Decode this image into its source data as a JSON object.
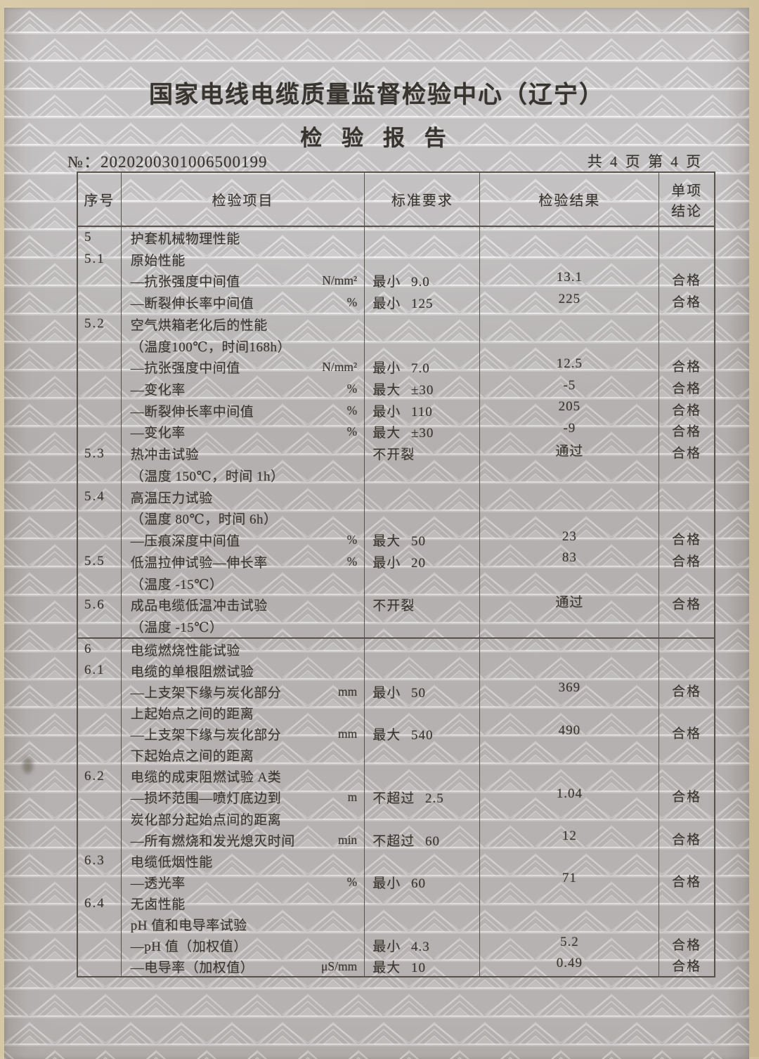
{
  "header": {
    "org": "国家电线电缆质量监督检验中心（辽宁）",
    "title": "检 验 报 告",
    "no_label": "№：",
    "no_value": "2020200301006500199",
    "page_info": "共 4 页 第 4 页"
  },
  "colors": {
    "paper": "#c2bfc0",
    "pattern_line": "#dcdadb",
    "ink": "#38342f",
    "table_line": "#58534d",
    "photo_edge": "#d3c4a0"
  },
  "table": {
    "columns": {
      "no": "序号",
      "item": "检验项目",
      "req": "标准要求",
      "result": "检验结果",
      "concl_line1": "单项",
      "concl_line2": "结论"
    },
    "sections": [
      {
        "rows": [
          {
            "no": "5",
            "item": "护套机械物理性能",
            "unit": "",
            "req": "",
            "result": "",
            "concl": ""
          },
          {
            "no": "5.1",
            "item": "原始性能",
            "unit": "",
            "req": "",
            "result": "",
            "concl": ""
          },
          {
            "no": "",
            "item": "—抗张强度中间值",
            "unit": "N/mm²",
            "req": "最小 9.0",
            "result": "13.1",
            "concl": "合格"
          },
          {
            "no": "",
            "item": "—断裂伸长率中间值",
            "unit": "%",
            "req": "最小 125",
            "result": "225",
            "concl": "合格"
          },
          {
            "no": "5.2",
            "item": "空气烘箱老化后的性能",
            "unit": "",
            "req": "",
            "result": "",
            "concl": ""
          },
          {
            "no": "",
            "item": "（温度100℃，时间168h）",
            "unit": "",
            "req": "",
            "result": "",
            "concl": ""
          },
          {
            "no": "",
            "item": "—抗张强度中间值",
            "unit": "N/mm²",
            "req": "最小 7.0",
            "result": "12.5",
            "concl": "合格"
          },
          {
            "no": "",
            "item": "—变化率",
            "unit": "%",
            "req": "最大 ±30",
            "result": "-5",
            "concl": "合格"
          },
          {
            "no": "",
            "item": "—断裂伸长率中间值",
            "unit": "%",
            "req": "最小 110",
            "result": "205",
            "concl": "合格"
          },
          {
            "no": "",
            "item": "—变化率",
            "unit": "%",
            "req": "最大 ±30",
            "result": "-9",
            "concl": "合格"
          },
          {
            "no": "5.3",
            "item": "热冲击试验",
            "unit": "",
            "req": "不开裂",
            "result": "通过",
            "concl": "合格"
          },
          {
            "no": "",
            "item": "（温度 150℃，时间 1h）",
            "unit": "",
            "req": "",
            "result": "",
            "concl": ""
          },
          {
            "no": "5.4",
            "item": "高温压力试验",
            "unit": "",
            "req": "",
            "result": "",
            "concl": ""
          },
          {
            "no": "",
            "item": "（温度 80℃，时间 6h）",
            "unit": "",
            "req": "",
            "result": "",
            "concl": ""
          },
          {
            "no": "",
            "item": "—压痕深度中间值",
            "unit": "%",
            "req": "最大 50",
            "result": "23",
            "concl": "合格"
          },
          {
            "no": "5.5",
            "item": "低温拉伸试验—伸长率",
            "unit": "%",
            "req": "最小 20",
            "result": "83",
            "concl": "合格"
          },
          {
            "no": "",
            "item": "（温度 -15℃）",
            "unit": "",
            "req": "",
            "result": "",
            "concl": ""
          },
          {
            "no": "5.6",
            "item": "成品电缆低温冲击试验",
            "unit": "",
            "req": "不开裂",
            "result": "通过",
            "concl": "合格"
          },
          {
            "no": "",
            "item": "（温度 -15℃）",
            "unit": "",
            "req": "",
            "result": "",
            "concl": ""
          }
        ]
      },
      {
        "rows": [
          {
            "no": "6",
            "item": "电缆燃烧性能试验",
            "unit": "",
            "req": "",
            "result": "",
            "concl": ""
          },
          {
            "no": "6.1",
            "item": "电缆的单根阻燃试验",
            "unit": "",
            "req": "",
            "result": "",
            "concl": ""
          },
          {
            "no": "",
            "item": "—上支架下缘与炭化部分",
            "unit": "mm",
            "req": "最小 50",
            "result": "369",
            "concl": "合格"
          },
          {
            "no": "",
            "item": "上起始点之间的距离",
            "unit": "",
            "req": "",
            "result": "",
            "concl": ""
          },
          {
            "no": "",
            "item": "—上支架下缘与炭化部分",
            "unit": "mm",
            "req": "最大 540",
            "result": "490",
            "concl": "合格"
          },
          {
            "no": "",
            "item": "下起始点之间的距离",
            "unit": "",
            "req": "",
            "result": "",
            "concl": ""
          },
          {
            "no": "6.2",
            "item": "电缆的成束阻燃试验 A类",
            "unit": "",
            "req": "",
            "result": "",
            "concl": ""
          },
          {
            "no": "",
            "item": "—损坏范围—喷灯底边到",
            "unit": "m",
            "req": "不超过 2.5",
            "result": "1.04",
            "concl": "合格"
          },
          {
            "no": "",
            "item": "炭化部分起始点间的距离",
            "unit": "",
            "req": "",
            "result": "",
            "concl": ""
          },
          {
            "no": "",
            "item": "—所有燃烧和发光熄灭时间",
            "unit": "min",
            "req": "不超过 60",
            "result": "12",
            "concl": "合格"
          },
          {
            "no": "6.3",
            "item": "电缆低烟性能",
            "unit": "",
            "req": "",
            "result": "",
            "concl": ""
          },
          {
            "no": "",
            "item": "—透光率",
            "unit": "%",
            "req": "最小 60",
            "result": "71",
            "concl": "合格"
          },
          {
            "no": "6.4",
            "item": "无卤性能",
            "unit": "",
            "req": "",
            "result": "",
            "concl": ""
          },
          {
            "no": "",
            "item": "pH 值和电导率试验",
            "unit": "",
            "req": "",
            "result": "",
            "concl": ""
          },
          {
            "no": "",
            "item": "—pH 值（加权值）",
            "unit": "",
            "req": "最小 4.3",
            "result": "5.2",
            "concl": "合格"
          },
          {
            "no": "",
            "item": "—电导率（加权值）",
            "unit": "μS/mm",
            "req": "最大 10",
            "result": "0.49",
            "concl": "合格"
          }
        ]
      }
    ]
  }
}
